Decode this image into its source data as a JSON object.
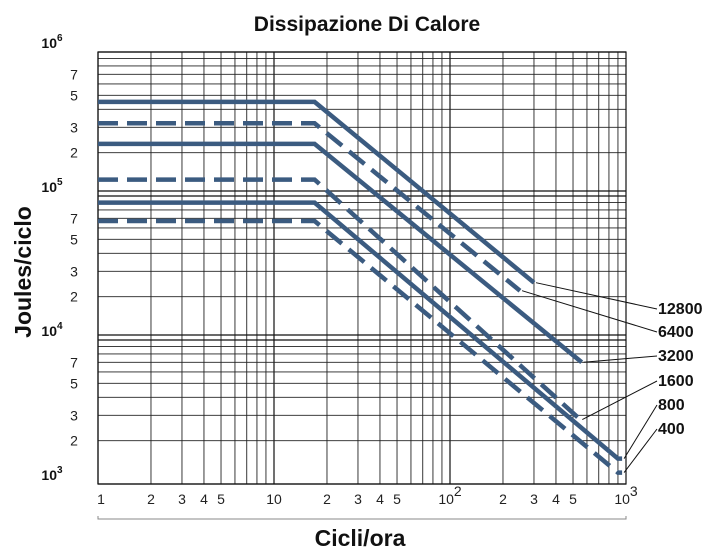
{
  "chart_data": {
    "type": "line",
    "title": "Dissipazione Di Calore",
    "xlabel": "Cicli/ora",
    "ylabel": "Joules/ciclo",
    "x_scale": "log",
    "y_scale": "log",
    "xlim": [
      1,
      1000
    ],
    "ylim": [
      1000,
      1000000
    ],
    "grid": true,
    "x_ticks": [
      {
        "value": 1,
        "label": "1",
        "sup": ""
      },
      {
        "value": 2,
        "label": "2",
        "sup": ""
      },
      {
        "value": 3,
        "label": "3",
        "sup": ""
      },
      {
        "value": 4,
        "label": "4",
        "sup": ""
      },
      {
        "value": 5,
        "label": "5",
        "sup": ""
      },
      {
        "value": 10,
        "label": "10",
        "sup": ""
      },
      {
        "value": 20,
        "label": "2",
        "sup": ""
      },
      {
        "value": 30,
        "label": "3",
        "sup": ""
      },
      {
        "value": 40,
        "label": "4",
        "sup": ""
      },
      {
        "value": 50,
        "label": "5",
        "sup": ""
      },
      {
        "value": 100,
        "label": "10",
        "sup": "2"
      },
      {
        "value": 200,
        "label": "2",
        "sup": ""
      },
      {
        "value": 300,
        "label": "3",
        "sup": ""
      },
      {
        "value": 400,
        "label": "4",
        "sup": ""
      },
      {
        "value": 500,
        "label": "5",
        "sup": ""
      },
      {
        "value": 1000,
        "label": "10",
        "sup": "3"
      }
    ],
    "y_ticks": [
      {
        "value": 1000,
        "label": "10",
        "sup": "3",
        "major": true
      },
      {
        "value": 2000,
        "label": "2",
        "sup": "",
        "major": false
      },
      {
        "value": 3000,
        "label": "3",
        "sup": "",
        "major": false
      },
      {
        "value": 5000,
        "label": "5",
        "sup": "",
        "major": false
      },
      {
        "value": 7000,
        "label": "7",
        "sup": "",
        "major": false
      },
      {
        "value": 10000,
        "label": "10",
        "sup": "4",
        "major": true
      },
      {
        "value": 20000,
        "label": "2",
        "sup": "",
        "major": false
      },
      {
        "value": 30000,
        "label": "3",
        "sup": "",
        "major": false
      },
      {
        "value": 50000,
        "label": "5",
        "sup": "",
        "major": false
      },
      {
        "value": 70000,
        "label": "7",
        "sup": "",
        "major": false
      },
      {
        "value": 100000,
        "label": "10",
        "sup": "5",
        "major": true
      },
      {
        "value": 200000,
        "label": "2",
        "sup": "",
        "major": false
      },
      {
        "value": 300000,
        "label": "3",
        "sup": "",
        "major": false
      },
      {
        "value": 500000,
        "label": "5",
        "sup": "",
        "major": false
      },
      {
        "value": 700000,
        "label": "7",
        "sup": "",
        "major": false
      },
      {
        "value": 1000000,
        "label": "10",
        "sup": "6",
        "major": true
      }
    ],
    "series": [
      {
        "name": "12800",
        "style": "solid",
        "points": [
          [
            1,
            450000
          ],
          [
            17,
            450000
          ],
          [
            300,
            25000
          ]
        ]
      },
      {
        "name": "6400",
        "style": "dashed",
        "points": [
          [
            1,
            320000
          ],
          [
            17,
            320000
          ],
          [
            250,
            22000
          ]
        ]
      },
      {
        "name": "3200",
        "style": "solid",
        "points": [
          [
            1,
            230000
          ],
          [
            17,
            230000
          ],
          [
            560,
            7000
          ]
        ]
      },
      {
        "name": "1600",
        "style": "dashed",
        "points": [
          [
            1,
            130000
          ],
          [
            17,
            130000
          ],
          [
            550,
            2800
          ]
        ]
      },
      {
        "name": "800",
        "style": "solid",
        "points": [
          [
            1,
            90000
          ],
          [
            17,
            90000
          ],
          [
            900,
            1500
          ],
          [
            950,
            1500
          ]
        ]
      },
      {
        "name": "400",
        "style": "dashed",
        "points": [
          [
            1,
            67000
          ],
          [
            17,
            67000
          ],
          [
            900,
            1200
          ],
          [
            950,
            1200
          ]
        ]
      }
    ],
    "colors": {
      "series": "#3b5b80"
    }
  }
}
